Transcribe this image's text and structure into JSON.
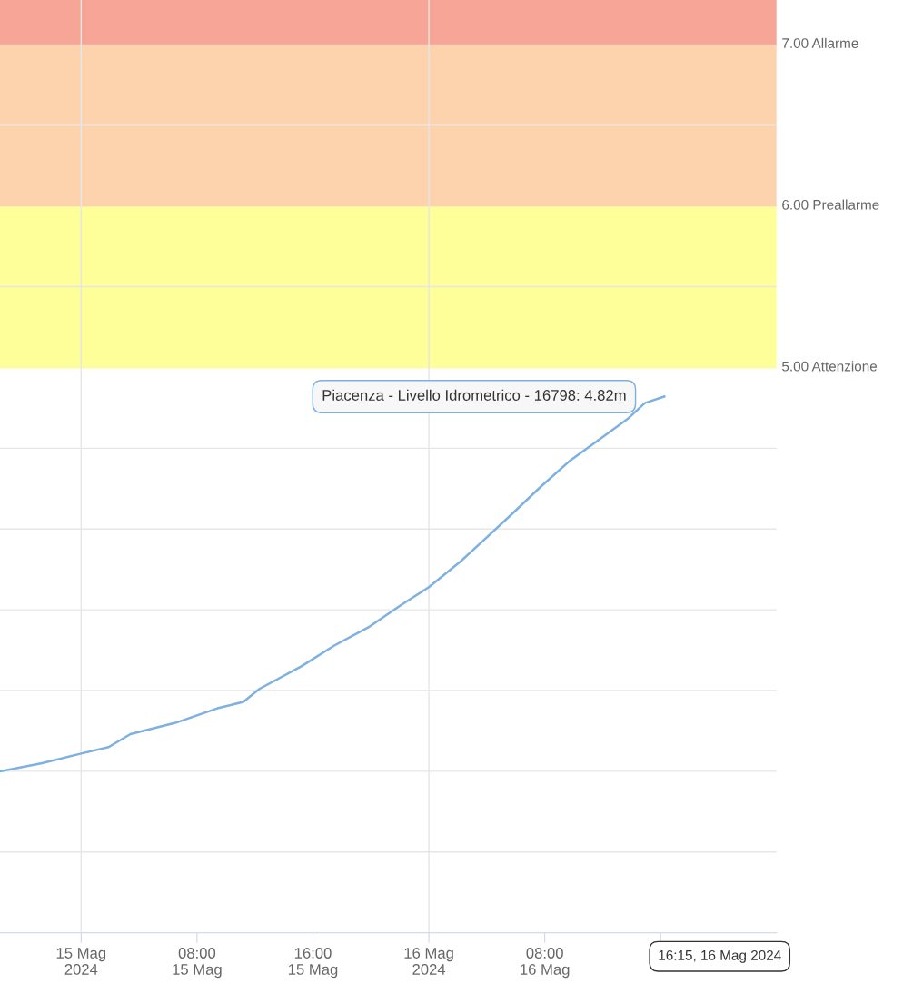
{
  "chart_data": {
    "type": "line",
    "x": [
      "2024-05-14T18:24",
      "2024-05-14T21:18",
      "2024-05-15T00:00",
      "2024-05-15T01:54",
      "2024-05-15T03:24",
      "2024-05-15T06:30",
      "2024-05-15T09:24",
      "2024-05-15T11:12",
      "2024-05-15T12:18",
      "2024-05-15T15:12",
      "2024-05-15T17:30",
      "2024-05-15T19:48",
      "2024-05-15T22:06",
      "2024-05-16T00:00",
      "2024-05-16T02:12",
      "2024-05-16T03:54",
      "2024-05-16T05:42",
      "2024-05-16T07:42",
      "2024-05-16T09:42",
      "2024-05-16T12:00",
      "2024-05-16T13:42",
      "2024-05-16T14:54",
      "2024-05-16T16:15"
    ],
    "series": [
      {
        "color": "#7eb0e0",
        "values": [
          2.5,
          2.55,
          2.61,
          2.65,
          2.73,
          2.8,
          2.89,
          2.93,
          3.01,
          3.15,
          3.28,
          3.39,
          3.53,
          3.64,
          3.8,
          3.94,
          4.09,
          4.26,
          4.42,
          4.57,
          4.68,
          4.78,
          4.82
        ]
      }
    ],
    "xlim": [
      "2024-05-14T18:24",
      "2024-05-17T00:00"
    ],
    "xticks": [
      {
        "value": "2024-05-15T00:00",
        "label": "15 Mag\n2024"
      },
      {
        "value": "2024-05-15T08:00",
        "label": "08:00\n15 Mag"
      },
      {
        "value": "2024-05-15T16:00",
        "label": "16:00\n15 Mag"
      },
      {
        "value": "2024-05-16T00:00",
        "label": "16 Mag\n2024"
      },
      {
        "value": "2024-05-16T08:00",
        "label": "08:00\n16 Mag"
      },
      {
        "value": "2024-05-16T16:00",
        "label": null
      }
    ],
    "ylim": [
      1.5,
      7.275
    ],
    "yticks": [
      {
        "value": 1.5,
        "label": null
      },
      {
        "value": 2,
        "label": null
      },
      {
        "value": 2.5,
        "label": null
      },
      {
        "value": 3,
        "label": null
      },
      {
        "value": 3.5,
        "label": null
      },
      {
        "value": 4,
        "label": null
      },
      {
        "value": 4.5,
        "label": null
      },
      {
        "value": 5,
        "label": null
      },
      {
        "value": 5.5,
        "label": null
      },
      {
        "value": 6,
        "label": null
      },
      {
        "value": 6.5,
        "label": null
      },
      {
        "value": 7,
        "label": null
      }
    ],
    "tick_labels": "x",
    "grid": "y",
    "bands": [
      {
        "axis": "y",
        "from": 5,
        "to": 6,
        "color": "#ffff99"
      },
      {
        "axis": "y",
        "from": 6,
        "to": 7,
        "color": "#fdd3ae"
      },
      {
        "axis": "y",
        "from": 7,
        "to": 7.275,
        "color": "#f6a597"
      }
    ],
    "ref_lines": [
      {
        "axis": "y",
        "value": 5,
        "label": "5.00 Attenzione",
        "color": "#ffff99"
      },
      {
        "axis": "y",
        "value": 6,
        "label": "6.00 Preallarme",
        "color": "#fdd3ae"
      },
      {
        "axis": "y",
        "value": 7,
        "label": "7.00 Allarme",
        "color": "#f6a597"
      },
      {
        "axis": "x",
        "value": "2024-05-15T00:00",
        "color": "#e6e6e6"
      },
      {
        "axis": "x",
        "value": "2024-05-16T00:00",
        "color": "#e6e6e6"
      }
    ],
    "annotations": [
      {
        "text": "Piacenza - Livello Idrometrico - 16798: 4.82m",
        "x": "2024-05-16T16:15",
        "y": 4.82
      },
      "16:15, 16 Mag 2024"
    ]
  }
}
